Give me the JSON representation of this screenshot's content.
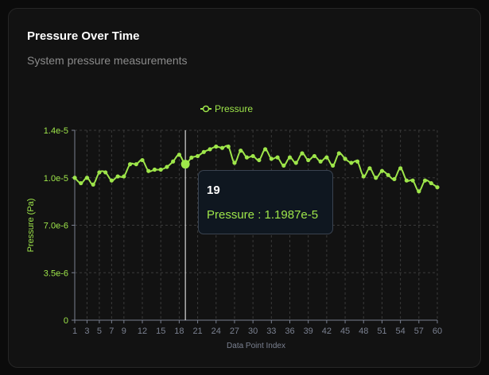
{
  "card": {
    "title": "Pressure Over Time",
    "subtitle": "System pressure measurements"
  },
  "colors": {
    "accent": "#9ee64a",
    "grid": "#3a3a3a",
    "axis_text": "#7a8090",
    "cursor": "#ffffff"
  },
  "tooltip": {
    "title": "19",
    "series_label": "Pressure",
    "value_text": "1.1987e-5"
  },
  "chart_data": {
    "type": "line",
    "title": "",
    "xlabel": "Data Point Index",
    "ylabel": "Pressure (Pa)",
    "legend": {
      "position": "top-center",
      "entries": [
        "Pressure"
      ]
    },
    "grid": true,
    "ylim": [
      0,
      1.4e-05
    ],
    "y_ticks": [
      0,
      3.5e-06,
      7e-06,
      1.05e-05,
      1.4e-05
    ],
    "y_tick_labels": [
      "0",
      "3.5e-6",
      "7.0e-6",
      "1.0e-5",
      "1.4e-5"
    ],
    "x_tick_labels": [
      "1",
      "3",
      "5",
      "7",
      "9",
      "12",
      "15",
      "18",
      "21",
      "24",
      "27",
      "30",
      "33",
      "36",
      "39",
      "42",
      "45",
      "48",
      "51",
      "54",
      "57",
      "60"
    ],
    "highlighted_index": 19,
    "x": [
      1,
      2,
      3,
      4,
      5,
      6,
      7,
      8,
      9,
      10,
      11,
      12,
      13,
      14,
      15,
      16,
      17,
      18,
      19,
      20,
      21,
      22,
      23,
      24,
      25,
      26,
      27,
      28,
      29,
      30,
      31,
      32,
      33,
      34,
      35,
      36,
      37,
      38,
      39,
      40,
      41,
      42,
      43,
      44,
      45,
      46,
      47,
      48,
      49,
      50,
      51,
      52,
      53,
      54,
      55,
      56,
      57,
      58,
      59,
      60
    ],
    "series": [
      {
        "name": "Pressure",
        "values": [
          1.05e-05,
          1.01e-05,
          1.05e-05,
          1e-05,
          1.09e-05,
          1.09e-05,
          1.03e-05,
          1.06e-05,
          1.06e-05,
          1.15e-05,
          1.15e-05,
          1.18e-05,
          1.1e-05,
          1.11e-05,
          1.11e-05,
          1.13e-05,
          1.17e-05,
          1.22e-05,
          1.15e-05,
          1.1987e-05,
          1.21e-05,
          1.24e-05,
          1.26e-05,
          1.28e-05,
          1.27e-05,
          1.28e-05,
          1.16e-05,
          1.25e-05,
          1.2e-05,
          1.21e-05,
          1.18e-05,
          1.26e-05,
          1.19e-05,
          1.2e-05,
          1.14e-05,
          1.2e-05,
          1.16e-05,
          1.23e-05,
          1.18e-05,
          1.21e-05,
          1.17e-05,
          1.2e-05,
          1.14e-05,
          1.23e-05,
          1.19e-05,
          1.16e-05,
          1.17e-05,
          1.06e-05,
          1.12e-05,
          1.05e-05,
          1.1e-05,
          1.07e-05,
          1.04e-05,
          1.12e-05,
          1.03e-05,
          1.03e-05,
          9.5e-06,
          1.03e-05,
          1.01e-05,
          9.8e-06
        ]
      }
    ]
  }
}
